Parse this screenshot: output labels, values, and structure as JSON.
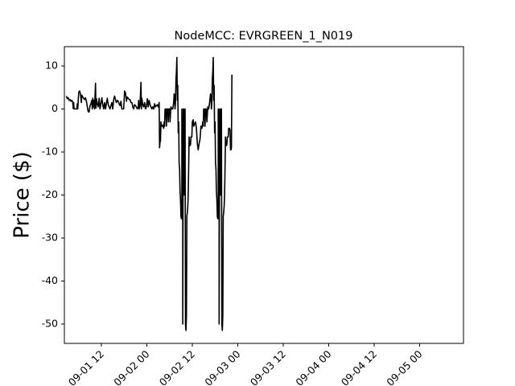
{
  "chart_data": {
    "type": "line",
    "title": "NodeMCC: EVRGREEN_1_N019",
    "xlabel": "",
    "ylabel": "Price ($)",
    "x_tick_labels": [
      "09-01 12",
      "09-02 00",
      "09-02 12",
      "09-03 00",
      "09-03 12",
      "09-04 00",
      "09-04 12",
      "09-05 00"
    ],
    "y_ticks": [
      10,
      0,
      -10,
      -20,
      -30,
      -40,
      -50
    ],
    "ylim": [
      -54.5,
      14.5
    ],
    "grid": false,
    "series": [
      {
        "color": "#000000",
        "points": [
          [
            0.23,
            3.0
          ],
          [
            0.25,
            2.4
          ],
          [
            0.27,
            2.6
          ],
          [
            0.29,
            2.0
          ],
          [
            0.31,
            2.2
          ],
          [
            0.33,
            1.8
          ],
          [
            0.35,
            2.0
          ],
          [
            0.37,
            1.6
          ],
          [
            0.38,
            0.1
          ],
          [
            0.39,
            1.5
          ],
          [
            0.4,
            0.0
          ],
          [
            0.46,
            0.0
          ],
          [
            0.47,
            1.2
          ],
          [
            0.48,
            0.0
          ],
          [
            0.5,
            3.8
          ],
          [
            0.52,
            4.2
          ],
          [
            0.54,
            3.5
          ],
          [
            0.56,
            1.5
          ],
          [
            0.57,
            3.2
          ],
          [
            0.59,
            2.8
          ],
          [
            0.61,
            2.5
          ],
          [
            0.63,
            2.2
          ],
          [
            0.65,
            2.6
          ],
          [
            0.67,
            1.8
          ],
          [
            0.69,
            0.5
          ],
          [
            0.71,
            -0.6
          ],
          [
            0.73,
            -0.7
          ],
          [
            0.75,
            0.8
          ],
          [
            0.77,
            1.2
          ],
          [
            0.79,
            2.0
          ],
          [
            0.8,
            0.0
          ],
          [
            0.81,
            2.5
          ],
          [
            0.83,
            0.5
          ],
          [
            0.84,
            2.0
          ],
          [
            0.85,
            0.0
          ],
          [
            0.87,
            6.0
          ],
          [
            0.88,
            0.2
          ],
          [
            0.89,
            2.4
          ],
          [
            0.91,
            1.2
          ],
          [
            0.93,
            0.5
          ],
          [
            0.95,
            2.5
          ],
          [
            0.97,
            0.0
          ],
          [
            0.99,
            1.2
          ],
          [
            1.01,
            2.6
          ],
          [
            1.03,
            1.0
          ],
          [
            1.05,
            0.0
          ],
          [
            1.07,
            1.5
          ],
          [
            1.09,
            0.0
          ],
          [
            1.11,
            1.2
          ],
          [
            1.13,
            2.5
          ],
          [
            1.15,
            1.0
          ],
          [
            1.17,
            0.5
          ],
          [
            1.19,
            0.0
          ],
          [
            1.21,
            0.8
          ],
          [
            1.23,
            1.5
          ],
          [
            1.25,
            0.0
          ],
          [
            1.27,
            2.2
          ],
          [
            1.29,
            3.0
          ],
          [
            1.31,
            2.2
          ],
          [
            1.33,
            1.5
          ],
          [
            1.35,
            2.0
          ],
          [
            1.37,
            1.8
          ],
          [
            1.39,
            1.2
          ],
          [
            1.41,
            0.8
          ],
          [
            1.43,
            1.8
          ],
          [
            1.45,
            0.0
          ],
          [
            1.49,
            0.0
          ],
          [
            1.51,
            4.2
          ],
          [
            1.53,
            3.8
          ],
          [
            1.55,
            1.8
          ],
          [
            1.57,
            2.8
          ],
          [
            1.59,
            2.5
          ],
          [
            1.61,
            2.2
          ],
          [
            1.63,
            2.2
          ],
          [
            1.65,
            1.5
          ],
          [
            1.67,
            1.5
          ],
          [
            1.69,
            0.5
          ],
          [
            1.71,
            0.0
          ],
          [
            1.73,
            1.0
          ],
          [
            1.75,
            0.8
          ],
          [
            1.77,
            0.5
          ],
          [
            1.79,
            0.0
          ],
          [
            1.81,
            0.5
          ],
          [
            1.82,
            2.0
          ],
          [
            1.83,
            0.0
          ],
          [
            1.85,
            0.8
          ],
          [
            1.87,
            6.2
          ],
          [
            1.88,
            0.0
          ],
          [
            1.89,
            2.5
          ],
          [
            1.91,
            1.0
          ],
          [
            1.93,
            0.5
          ],
          [
            1.95,
            1.5
          ],
          [
            1.97,
            0.0
          ],
          [
            1.99,
            0.5
          ],
          [
            2.01,
            2.4
          ],
          [
            2.03,
            0.5
          ],
          [
            2.05,
            2.0
          ],
          [
            2.07,
            1.0
          ],
          [
            2.09,
            0.5
          ],
          [
            2.11,
            0.0
          ],
          [
            2.13,
            0.5
          ],
          [
            2.15,
            0.0
          ],
          [
            2.17,
            1.2
          ],
          [
            2.19,
            0.5
          ],
          [
            2.21,
            0.8
          ],
          [
            2.23,
            1.0
          ],
          [
            2.25,
            0.5
          ],
          [
            2.27,
            1.5
          ],
          [
            2.28,
            -9.0
          ],
          [
            2.29,
            -7.5
          ],
          [
            2.3,
            -7.5
          ],
          [
            2.31,
            -3.0
          ],
          [
            2.33,
            -4.0
          ],
          [
            2.35,
            -3.8
          ],
          [
            2.37,
            -4.5
          ],
          [
            2.38,
            -3.0
          ],
          [
            2.39,
            -4.0
          ],
          [
            2.4,
            0.0
          ],
          [
            2.42,
            0.0
          ],
          [
            2.43,
            -4.0
          ],
          [
            2.44,
            0.0
          ],
          [
            2.46,
            0.0
          ],
          [
            2.47,
            -3.0
          ],
          [
            2.48,
            0.0
          ],
          [
            2.5,
            0.0
          ],
          [
            2.51,
            -3.0
          ],
          [
            2.53,
            0.5
          ],
          [
            2.55,
            0.0
          ],
          [
            2.57,
            0.0
          ],
          [
            2.59,
            1.5
          ],
          [
            2.6,
            3.5
          ],
          [
            2.61,
            3.0
          ],
          [
            2.62,
            0.0
          ],
          [
            2.63,
            1.5
          ],
          [
            2.64,
            7.0
          ],
          [
            2.65,
            8.5
          ],
          [
            2.66,
            12.0
          ],
          [
            2.67,
            2.0
          ],
          [
            2.68,
            5.5
          ],
          [
            2.69,
            -5.5
          ],
          [
            2.7,
            -3.0
          ],
          [
            2.71,
            -12.5
          ],
          [
            2.72,
            -14.0
          ],
          [
            2.73,
            -19.0
          ],
          [
            2.74,
            -21.0
          ],
          [
            2.75,
            -25.0
          ],
          [
            2.76,
            -25.5
          ],
          [
            2.77,
            -22.0
          ],
          [
            2.77,
            0.0
          ],
          [
            2.78,
            -25.0
          ],
          [
            2.79,
            -26.0
          ],
          [
            2.79,
            -50.0
          ],
          [
            2.8,
            0.0
          ],
          [
            2.81,
            0.0
          ],
          [
            2.82,
            -20.0
          ],
          [
            2.83,
            0.0
          ],
          [
            2.84,
            0.0
          ],
          [
            2.85,
            -50.0
          ],
          [
            2.86,
            -51.5
          ],
          [
            2.87,
            -48.0
          ],
          [
            2.88,
            -25.0
          ],
          [
            2.89,
            -24.0
          ],
          [
            2.9,
            -22.5
          ],
          [
            2.91,
            -20.0
          ],
          [
            2.92,
            -13.0
          ],
          [
            2.93,
            -6.5
          ],
          [
            2.94,
            -8.5
          ],
          [
            2.95,
            -8.5
          ],
          [
            2.96,
            -8.3
          ],
          [
            2.97,
            -6.5
          ],
          [
            2.99,
            -6.5
          ],
          [
            3.0,
            -3.0
          ],
          [
            3.02,
            -2.5
          ],
          [
            3.03,
            -4.0
          ],
          [
            3.05,
            -3.5
          ],
          [
            3.07,
            -3.0
          ],
          [
            3.09,
            -4.5
          ],
          [
            3.11,
            -8.0
          ],
          [
            3.13,
            -9.5
          ],
          [
            3.15,
            -8.0
          ],
          [
            3.17,
            -7.0
          ],
          [
            3.19,
            -4.0
          ],
          [
            3.21,
            -4.5
          ],
          [
            3.23,
            -3.0
          ],
          [
            3.24,
            -4.0
          ],
          [
            3.25,
            0.0
          ],
          [
            3.27,
            0.0
          ],
          [
            3.28,
            -4.0
          ],
          [
            3.29,
            0.0
          ],
          [
            3.31,
            0.0
          ],
          [
            3.32,
            -3.0
          ],
          [
            3.34,
            0.5
          ],
          [
            3.36,
            0.0
          ],
          [
            3.38,
            1.5
          ],
          [
            3.4,
            3.5
          ],
          [
            3.41,
            3.0
          ],
          [
            3.42,
            0.0
          ],
          [
            3.43,
            1.5
          ],
          [
            3.44,
            7.0
          ],
          [
            3.45,
            8.5
          ],
          [
            3.46,
            12.0
          ],
          [
            3.47,
            2.0
          ],
          [
            3.48,
            5.5
          ],
          [
            3.49,
            -5.5
          ],
          [
            3.5,
            -3.0
          ],
          [
            3.51,
            -12.5
          ],
          [
            3.52,
            -14.0
          ],
          [
            3.53,
            -19.0
          ],
          [
            3.54,
            -21.0
          ],
          [
            3.55,
            -25.0
          ],
          [
            3.56,
            -25.5
          ],
          [
            3.57,
            -22.0
          ],
          [
            3.57,
            0.0
          ],
          [
            3.58,
            -25.0
          ],
          [
            3.59,
            -26.0
          ],
          [
            3.59,
            -50.0
          ],
          [
            3.6,
            0.0
          ],
          [
            3.61,
            0.0
          ],
          [
            3.62,
            -20.0
          ],
          [
            3.63,
            0.0
          ],
          [
            3.64,
            0.0
          ],
          [
            3.65,
            -50.0
          ],
          [
            3.66,
            -51.5
          ],
          [
            3.67,
            -48.0
          ],
          [
            3.68,
            -25.0
          ],
          [
            3.69,
            -24.0
          ],
          [
            3.7,
            -22.5
          ],
          [
            3.71,
            -20.0
          ],
          [
            3.72,
            -13.0
          ],
          [
            3.73,
            -6.5
          ],
          [
            3.74,
            -8.5
          ],
          [
            3.75,
            -8.5
          ],
          [
            3.76,
            -8.3
          ],
          [
            3.77,
            -6.5
          ],
          [
            3.79,
            -6.5
          ],
          [
            3.8,
            -4.5
          ],
          [
            3.82,
            -4.5
          ],
          [
            3.83,
            -5.0
          ],
          [
            3.84,
            -9.5
          ],
          [
            3.85,
            -9.5
          ],
          [
            3.86,
            -9.0
          ],
          [
            3.87,
            8.0
          ]
        ]
      }
    ]
  }
}
